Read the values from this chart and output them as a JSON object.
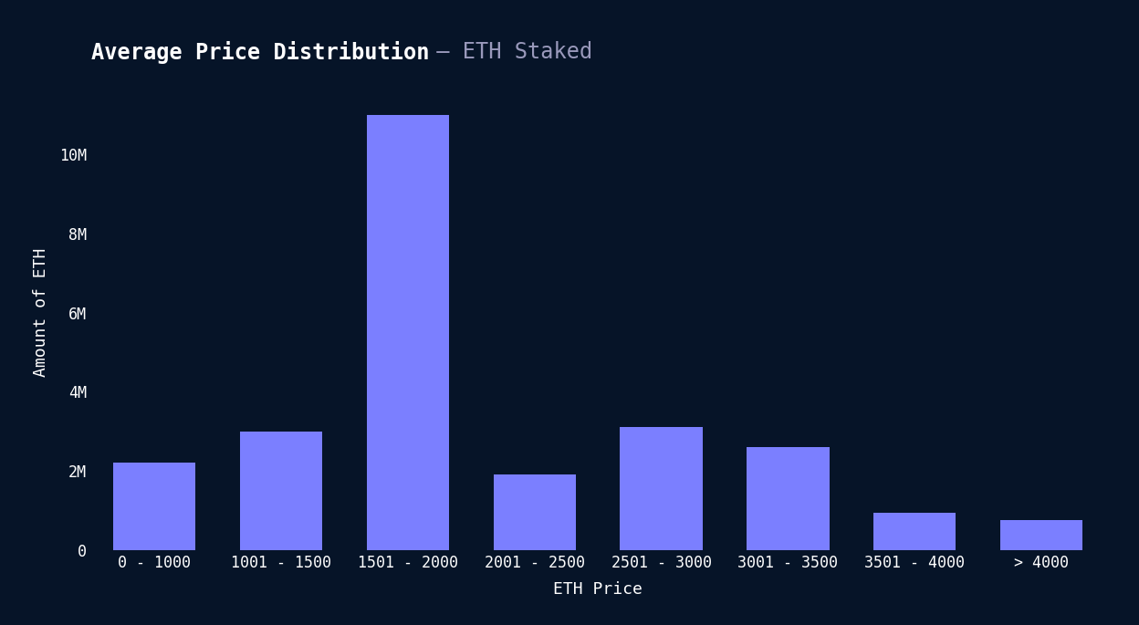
{
  "title_main": "Average Price Distribution",
  "title_sep": " – ",
  "title_sub": "ETH Staked",
  "categories": [
    "0 - 1000",
    "1001 - 1500",
    "1501 - 2000",
    "2001 - 2500",
    "2501 - 3000",
    "3001 - 3500",
    "3501 - 4000",
    "> 4000"
  ],
  "values": [
    2200000,
    3000000,
    11000000,
    1900000,
    3100000,
    2600000,
    950000,
    750000
  ],
  "bar_color": "#7B7FFF",
  "background_color": "#061428",
  "text_color": "#FFFFFF",
  "subtitle_color": "#9999BB",
  "xlabel": "ETH Price",
  "ylabel": "Amount of ETH",
  "ylim_max": 12000000,
  "ytick_values": [
    0,
    2000000,
    4000000,
    6000000,
    8000000,
    10000000
  ],
  "ytick_labels": [
    "0",
    "2M",
    "4M",
    "6M",
    "8M",
    "10M"
  ],
  "title_fontsize": 17,
  "label_fontsize": 13,
  "tick_fontsize": 12
}
